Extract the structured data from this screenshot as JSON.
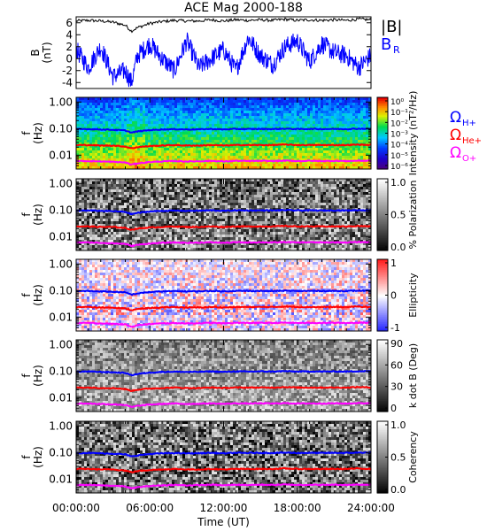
{
  "title": "ACE Mag 2000-188",
  "xlabel": "Time (UT)",
  "xticks": [
    "00:00:00",
    "06:00:00",
    "12:00:00",
    "18:00:00",
    "24:00:00"
  ],
  "panel1": {
    "ylabel_top": "B",
    "ylabel_bottom": "(nT)",
    "yticks": [
      "6",
      "4",
      "2",
      "0",
      "-2",
      "-4"
    ],
    "legend": [
      {
        "label": "|B|",
        "color": "#000000"
      },
      {
        "label": "B",
        "sub": "R",
        "color": "#0000ff"
      }
    ]
  },
  "spectral_panels": [
    {
      "id": "intensity",
      "ylabel_top": "f",
      "ylabel_bottom": "(Hz)",
      "yticks": [
        "1.00",
        "0.10",
        "0.01"
      ],
      "colorbar_label": "Intensity (nT²/Hz)",
      "colorbar_ticks": [
        "10⁰",
        "10⁻¹",
        "10⁻²",
        "10⁻³",
        "10⁻⁴",
        "10⁻⁵",
        "10⁻⁶"
      ]
    },
    {
      "id": "polarization",
      "ylabel_top": "f",
      "ylabel_bottom": "(Hz)",
      "yticks": [
        "1.00",
        "0.10",
        "0.01"
      ],
      "colorbar_label": "% Polarization",
      "colorbar_ticks": [
        "1.0",
        "0.5",
        "0.0"
      ]
    },
    {
      "id": "ellipticity",
      "ylabel_top": "f",
      "ylabel_bottom": "(Hz)",
      "yticks": [
        "1.00",
        "0.10",
        "0.01"
      ],
      "colorbar_label": "Ellipticity",
      "colorbar_ticks": [
        "1",
        "0",
        "-1"
      ]
    },
    {
      "id": "kdotb",
      "ylabel_top": "f",
      "ylabel_bottom": "(Hz)",
      "yticks": [
        "1.00",
        "0.10",
        "0.01"
      ],
      "colorbar_label": "k dot B (Deg)",
      "colorbar_ticks": [
        "90",
        "60",
        "30",
        "0"
      ]
    },
    {
      "id": "coherency",
      "ylabel_top": "f",
      "ylabel_bottom": "(Hz)",
      "yticks": [
        "1.00",
        "0.10",
        "0.01"
      ],
      "colorbar_label": "Coherency",
      "colorbar_ticks": [
        "1.0",
        "0.5",
        "0.0"
      ]
    }
  ],
  "gyro_legend": [
    {
      "symbol": "Ω",
      "sub": "H+",
      "color": "#0000ff"
    },
    {
      "symbol": "Ω",
      "sub": "He+",
      "color": "#ff0000"
    },
    {
      "symbol": "Ω",
      "sub": "O+",
      "color": "#ff00ff"
    }
  ],
  "chart_data": {
    "type": "line",
    "title": "ACE Mag 2000-188",
    "xlabel": "Time (UT)",
    "x_hours": [
      0,
      1,
      2,
      3,
      4,
      4.5,
      5,
      6,
      7,
      8,
      9,
      10,
      11,
      12,
      13,
      14,
      15,
      16,
      17,
      18,
      19,
      20,
      21,
      22,
      23,
      24
    ],
    "xlim": [
      0,
      24
    ],
    "series": [
      {
        "name": "|B|",
        "panel": "B (nT)",
        "values": [
          6.3,
          6.4,
          6.3,
          6.1,
          5.6,
          4.6,
          5.2,
          5.9,
          6.2,
          6.4,
          6.3,
          6.3,
          6.5,
          6.3,
          6.5,
          6.4,
          6.5,
          6.4,
          6.6,
          6.4,
          6.5,
          6.4,
          6.5,
          6.4,
          6.6,
          6.5
        ]
      },
      {
        "name": "B_R",
        "panel": "B (nT)",
        "values": [
          1.5,
          -1.5,
          2.0,
          -3.0,
          -2.0,
          -4.0,
          0.5,
          2.5,
          0.0,
          -2.0,
          3.0,
          -1.5,
          0.0,
          1.5,
          -2.0,
          3.5,
          0.5,
          -1.0,
          2.0,
          3.0,
          -0.5,
          2.5,
          1.0,
          0.5,
          -1.5,
          0.5
        ]
      },
      {
        "name": "ΩH+",
        "panel": "f (Hz)",
        "values": [
          0.095,
          0.096,
          0.093,
          0.09,
          0.085,
          0.07,
          0.078,
          0.088,
          0.093,
          0.095,
          0.093,
          0.094,
          0.097,
          0.093,
          0.097,
          0.096,
          0.097,
          0.096,
          0.099,
          0.096,
          0.097,
          0.096,
          0.097,
          0.096,
          0.099,
          0.098
        ]
      },
      {
        "name": "ΩHe+",
        "panel": "f (Hz)",
        "values": [
          0.024,
          0.024,
          0.023,
          0.023,
          0.021,
          0.018,
          0.02,
          0.022,
          0.023,
          0.024,
          0.023,
          0.023,
          0.024,
          0.023,
          0.024,
          0.024,
          0.024,
          0.024,
          0.025,
          0.024,
          0.024,
          0.024,
          0.024,
          0.024,
          0.025,
          0.024
        ]
      },
      {
        "name": "ΩO+",
        "panel": "f (Hz)",
        "values": [
          0.006,
          0.006,
          0.0058,
          0.0056,
          0.0053,
          0.0044,
          0.0049,
          0.0055,
          0.0058,
          0.006,
          0.0058,
          0.0059,
          0.0061,
          0.0058,
          0.0061,
          0.006,
          0.0061,
          0.006,
          0.0062,
          0.006,
          0.0061,
          0.006,
          0.0061,
          0.006,
          0.0062,
          0.0061
        ]
      }
    ],
    "panel_ylims": {
      "B (nT)": [
        -5,
        7
      ],
      "f (Hz)": [
        0.003,
        1.5
      ]
    },
    "yscale_spectral": "log"
  }
}
